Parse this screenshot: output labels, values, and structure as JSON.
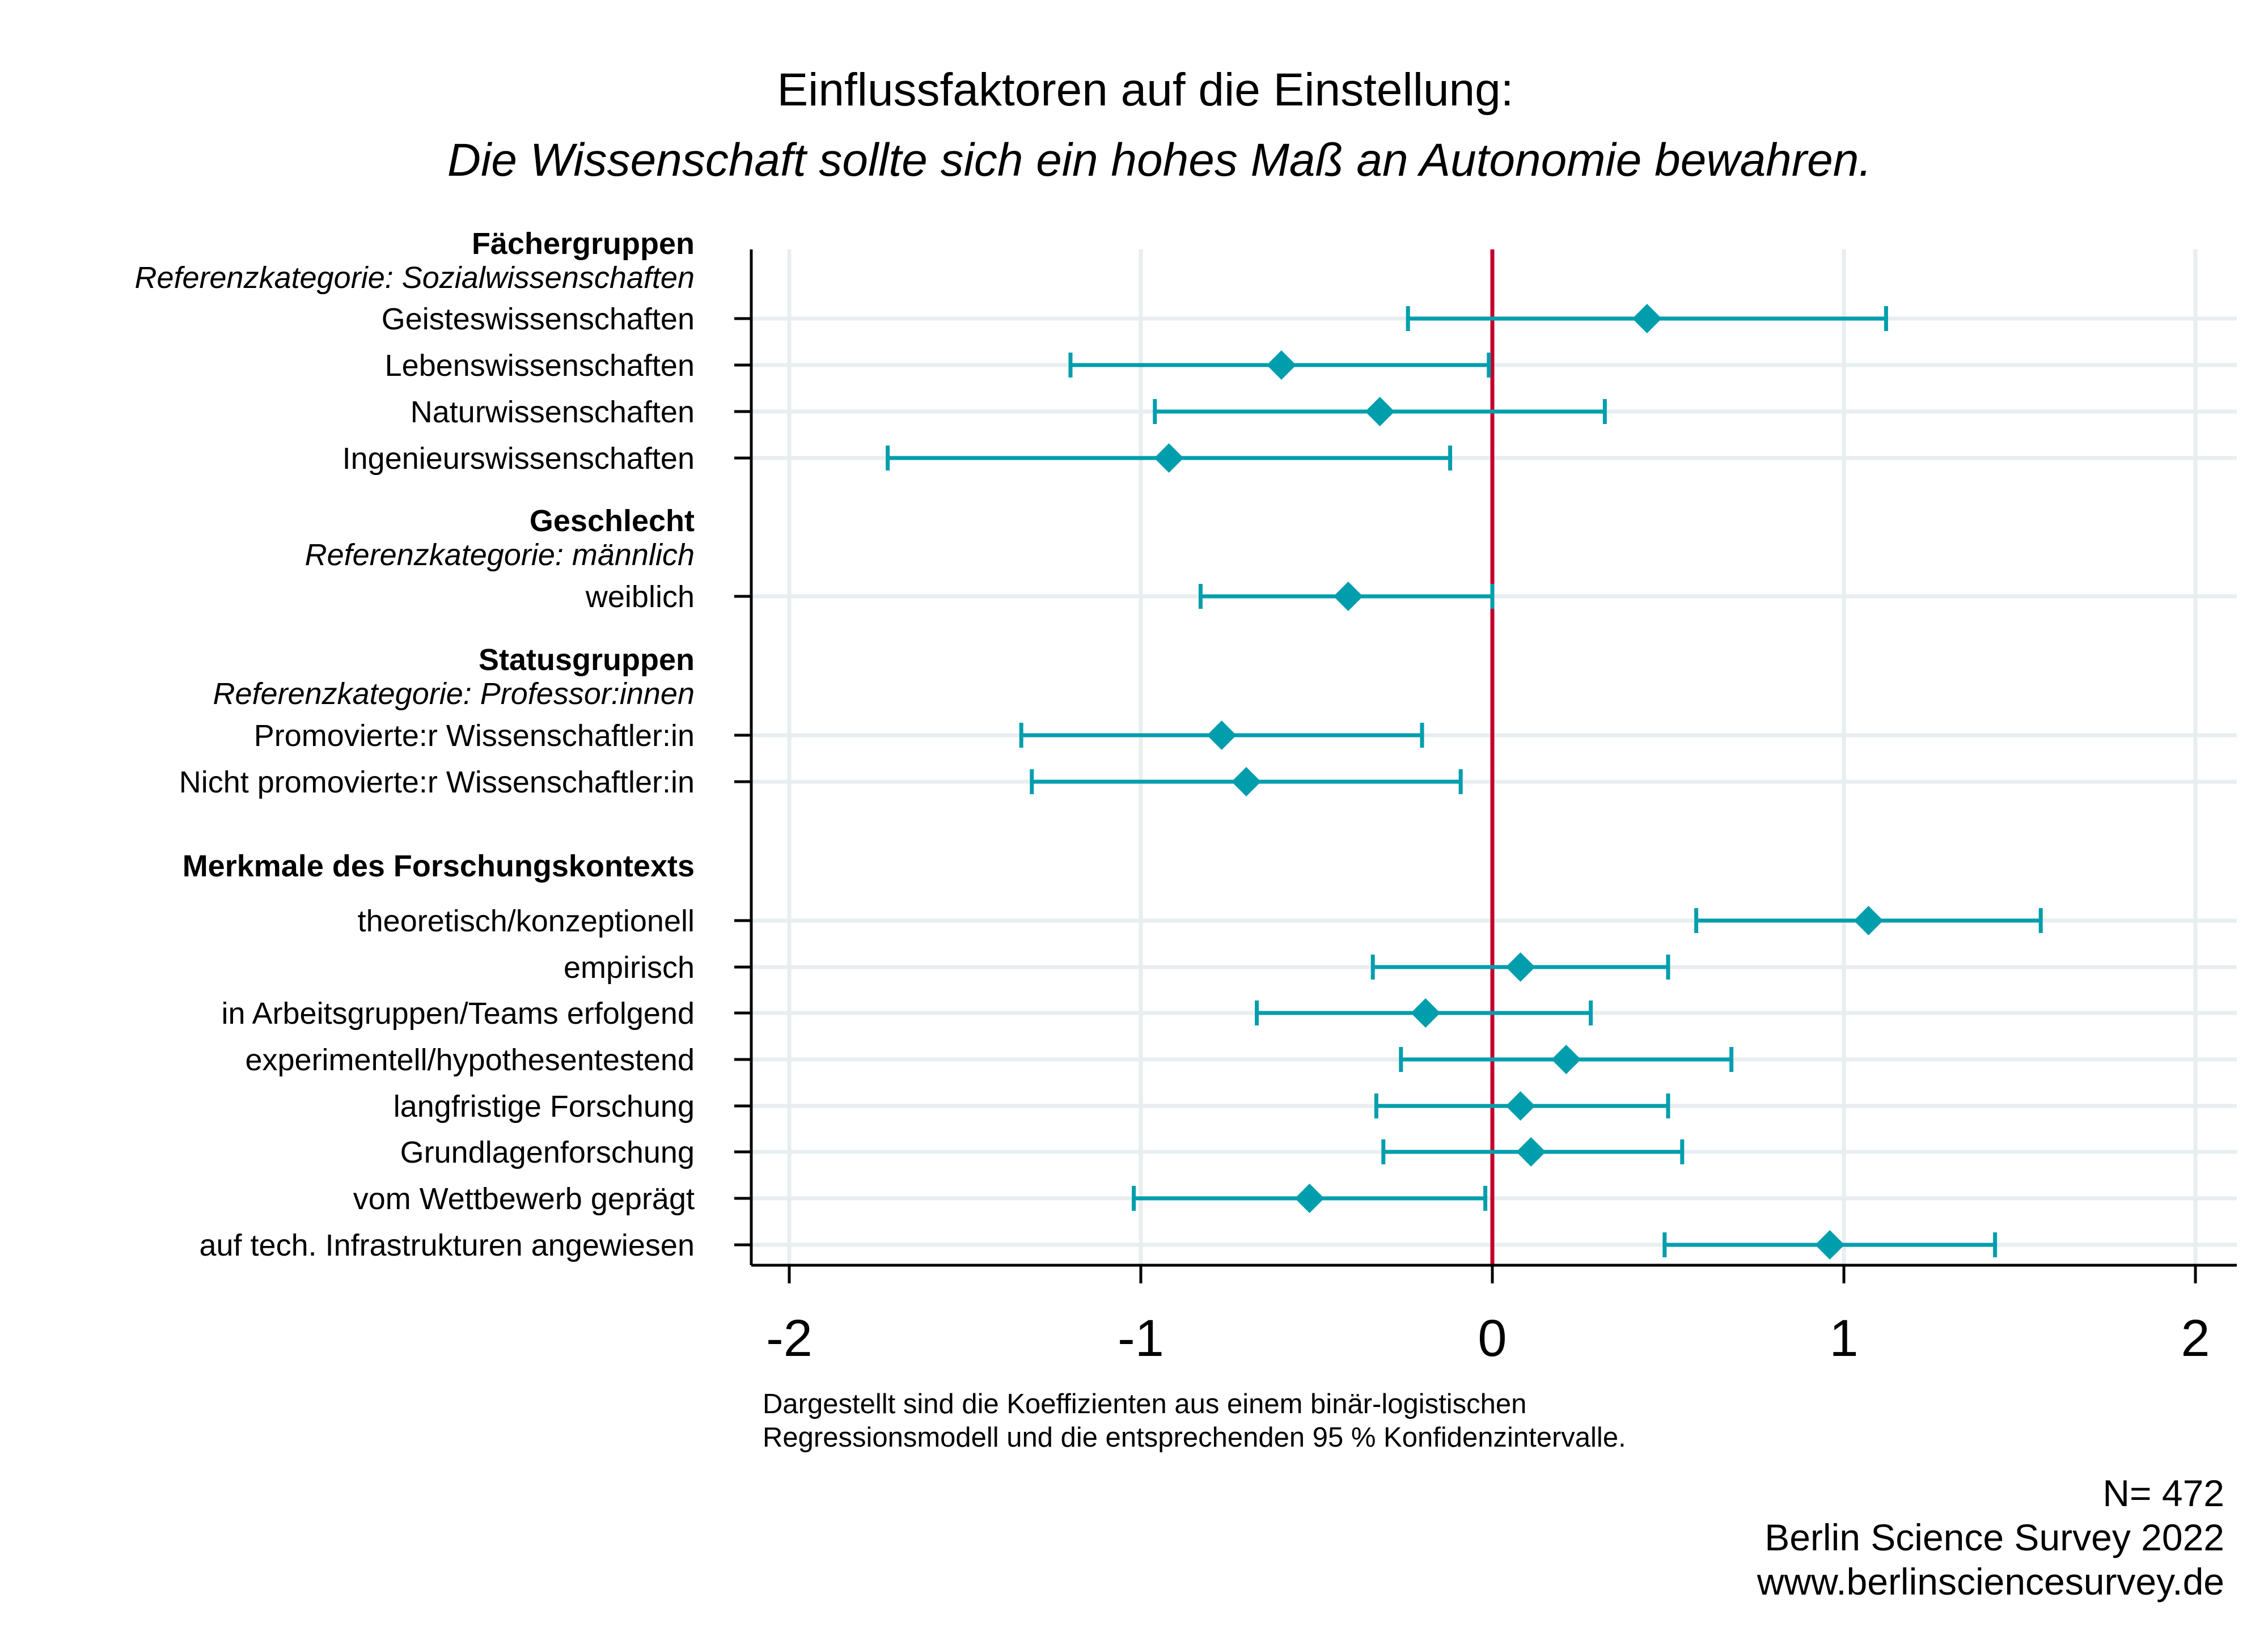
{
  "chart_data": {
    "type": "scatter",
    "subtype": "coefficient-plot",
    "title": "Einflussfaktoren auf die Einstellung:",
    "subtitle": "Die Wissenschaft sollte sich ein hohes Maß an Autonomie bewahren.",
    "xlim": [
      -2.1,
      2.1
    ],
    "x_ticks": [
      -2,
      -1,
      0,
      1,
      2
    ],
    "x_tick_labels": [
      "-2",
      "-1",
      "0",
      "1",
      "2"
    ],
    "reference_line": 0,
    "grid": true,
    "colors": {
      "marker": "#009ead",
      "reference_line": "#c4002b",
      "grid": "#e8eef0",
      "axis": "#000000"
    },
    "groups": [
      {
        "heading": "Fächergruppen",
        "reference": "Referenzkategorie: Sozialwissenschaften",
        "items": [
          {
            "label": "Geisteswissenschaften",
            "coef": 0.44,
            "ci_low": -0.24,
            "ci_high": 1.12
          },
          {
            "label": "Lebenswissenschaften",
            "coef": -0.6,
            "ci_low": -1.2,
            "ci_high": -0.01
          },
          {
            "label": "Naturwissenschaften",
            "coef": -0.32,
            "ci_low": -0.96,
            "ci_high": 0.32
          },
          {
            "label": "Ingenieurswissenschaften",
            "coef": -0.92,
            "ci_low": -1.72,
            "ci_high": -0.12
          }
        ]
      },
      {
        "heading": "Geschlecht",
        "reference": "Referenzkategorie: männlich",
        "items": [
          {
            "label": "weiblich",
            "coef": -0.41,
            "ci_low": -0.83,
            "ci_high": 0.0
          }
        ]
      },
      {
        "heading": "Statusgruppen",
        "reference": "Referenzkategorie: Professor:innen",
        "items": [
          {
            "label": "Promovierte:r Wissenschaftler:in",
            "coef": -0.77,
            "ci_low": -1.34,
            "ci_high": -0.2
          },
          {
            "label": "Nicht promovierte:r Wissenschaftler:in",
            "coef": -0.7,
            "ci_low": -1.31,
            "ci_high": -0.09
          }
        ]
      },
      {
        "heading": "Merkmale des Forschungskontexts",
        "reference": "",
        "items": [
          {
            "label": "theoretisch/konzeptionell",
            "coef": 1.07,
            "ci_low": 0.58,
            "ci_high": 1.56
          },
          {
            "label": "empirisch",
            "coef": 0.08,
            "ci_low": -0.34,
            "ci_high": 0.5
          },
          {
            "label": "in Arbeitsgruppen/Teams erfolgend",
            "coef": -0.19,
            "ci_low": -0.67,
            "ci_high": 0.28
          },
          {
            "label": "experimentell/hypothesentestend",
            "coef": 0.21,
            "ci_low": -0.26,
            "ci_high": 0.68
          },
          {
            "label": "langfristige Forschung",
            "coef": 0.08,
            "ci_low": -0.33,
            "ci_high": 0.5
          },
          {
            "label": "Grundlagenforschung",
            "coef": 0.11,
            "ci_low": -0.31,
            "ci_high": 0.54
          },
          {
            "label": "vom Wettbewerb geprägt",
            "coef": -0.52,
            "ci_low": -1.02,
            "ci_high": -0.02
          },
          {
            "label": "auf tech. Infrastrukturen angewiesen",
            "coef": 0.96,
            "ci_low": 0.49,
            "ci_high": 1.43
          }
        ]
      }
    ]
  },
  "note": {
    "line1": "Dargestellt sind die Koeffizienten aus einem binär-logistischen",
    "line2": "Regressionsmodell und die entsprechenden 95 % Konfidenzintervalle."
  },
  "source": {
    "n": "N= 472",
    "survey": "Berlin Science Survey 2022",
    "url": "www.berlinsciencesurvey.de"
  }
}
